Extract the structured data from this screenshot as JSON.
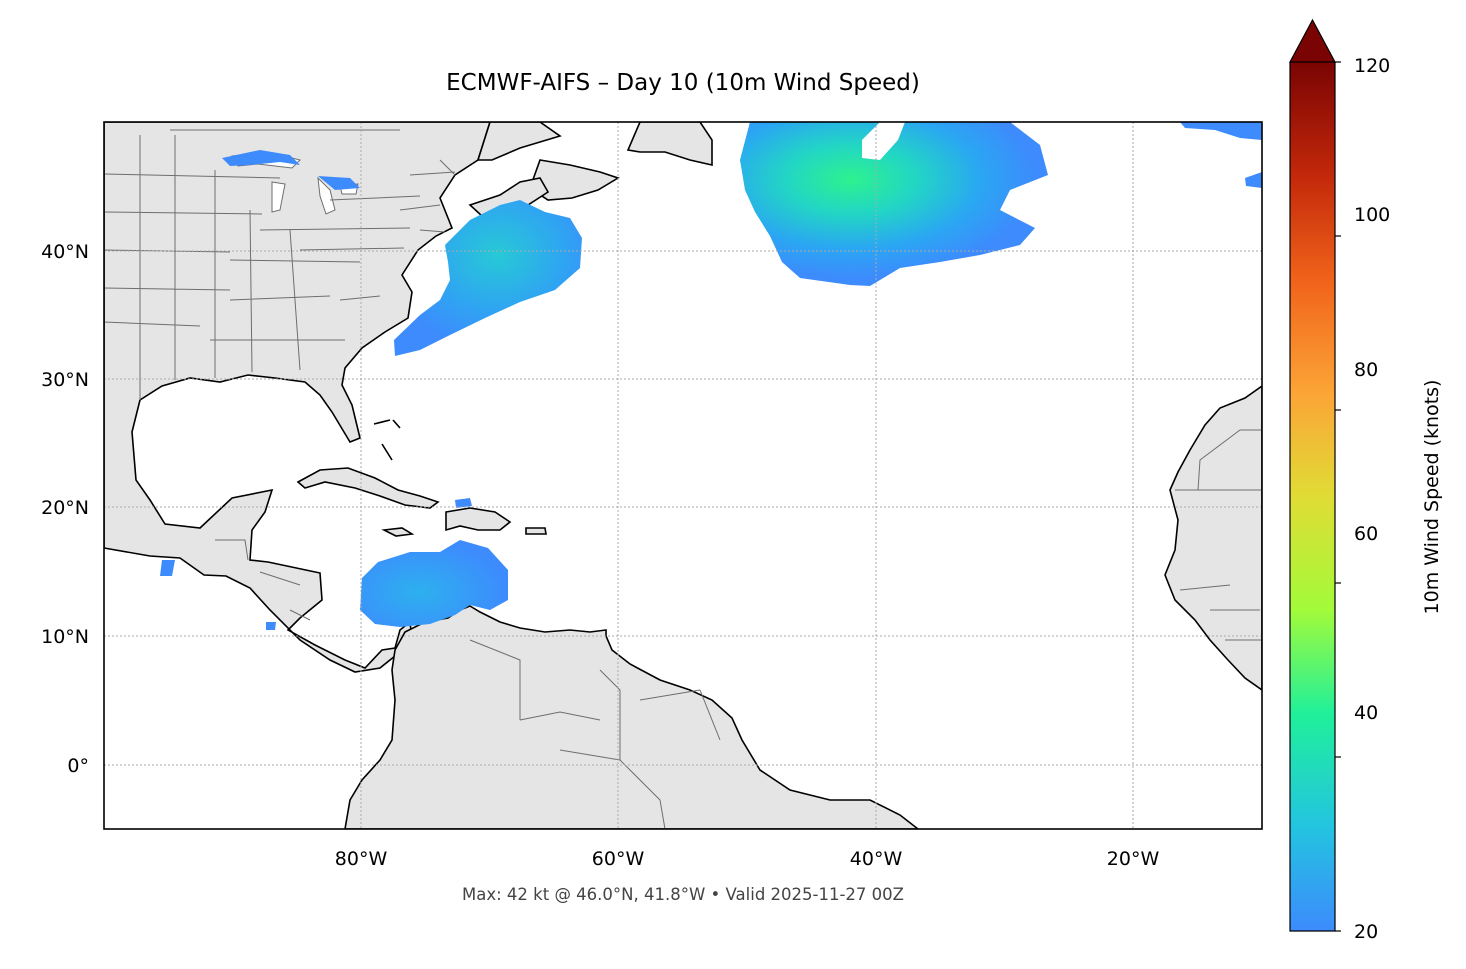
{
  "title": "ECMWF-AIFS – Day 10 (10m Wind Speed)",
  "footer": "Max: 42 kt @ 46.0°N, 41.8°W • Valid 2025-11-27 00Z",
  "map": {
    "lon_range": [
      -100,
      -10
    ],
    "lat_range": [
      -5,
      50
    ],
    "lon_ticks": [
      "80°W",
      "60°W",
      "40°W",
      "20°W"
    ],
    "lat_ticks": [
      "40°N",
      "30°N",
      "20°N",
      "10°N",
      "0°"
    ],
    "land_color": "#e5e5e5",
    "coast_color": "#000000",
    "border_color": "#6e6e6e",
    "gridlines": true
  },
  "colorbar": {
    "label": "10m Wind Speed (knots)",
    "ticks": [
      "20",
      "40",
      "60",
      "80",
      "100",
      "120"
    ],
    "range": [
      20,
      120
    ],
    "extend": "max",
    "colormap": "turbo",
    "colors": [
      "#3d8bfd",
      "#23c4e0",
      "#20f09a",
      "#a3fb3a",
      "#e0dc35",
      "#fca436",
      "#f0621a",
      "#c2280a",
      "#7a0403"
    ]
  },
  "wind_regions": [
    {
      "name": "north-atlantic-low",
      "max_kt": 42,
      "lat": 46.0,
      "lon": -41.8
    },
    {
      "name": "us-east-coast",
      "max_kt": 30
    },
    {
      "name": "caribbean-sea",
      "max_kt": 26
    }
  ]
}
